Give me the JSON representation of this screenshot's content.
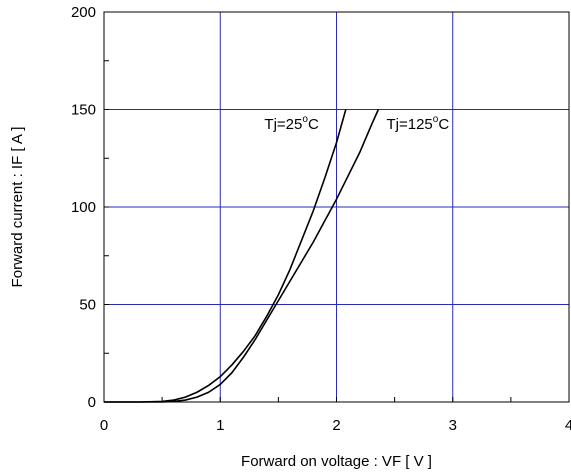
{
  "chart_data": {
    "type": "line",
    "title": "",
    "xlabel": "Forward on voltage : VF [ V ]",
    "ylabel": "Forward current : IF [ A ]",
    "xlim": [
      0,
      4
    ],
    "ylim": [
      0,
      200
    ],
    "x_ticks": [
      0,
      1,
      2,
      3,
      4
    ],
    "y_ticks": [
      0,
      50,
      100,
      150,
      200
    ],
    "x_tick_labels": [
      "0",
      "1",
      "2",
      "3",
      "4"
    ],
    "y_tick_labels": [
      "0",
      "50",
      "100",
      "150",
      "200"
    ],
    "grid": true,
    "legend": "none",
    "colors": {
      "grid": "#2a2ab8",
      "line": "#000000",
      "frame": "#000000"
    },
    "series": [
      {
        "x": [
          0.0,
          0.3,
          0.5,
          0.6,
          0.7,
          0.8,
          0.9,
          1.0,
          1.1,
          1.2,
          1.3,
          1.4,
          1.5,
          1.6,
          1.7,
          1.8,
          1.9,
          2.0,
          2.08
        ],
        "y": [
          0,
          0,
          0.3,
          1,
          2.5,
          5,
          8.5,
          13,
          19,
          26,
          34,
          44,
          55,
          68,
          83,
          98,
          115,
          133,
          150
        ]
      },
      {
        "x": [
          0.0,
          0.3,
          0.5,
          0.6,
          0.7,
          0.8,
          0.9,
          1.0,
          1.1,
          1.2,
          1.3,
          1.4,
          1.5,
          1.6,
          1.7,
          1.8,
          1.9,
          2.0,
          2.1,
          2.2,
          2.3,
          2.36
        ],
        "y": [
          0,
          0,
          0,
          0.3,
          1,
          2.5,
          5,
          9,
          15,
          23,
          32,
          42,
          52,
          62,
          72,
          82,
          93,
          104,
          116,
          128,
          142,
          150
        ]
      }
    ],
    "annotations": [
      {
        "base": "Tj=25",
        "sup": "o",
        "unit": "C",
        "x": 1.38,
        "y": 140
      },
      {
        "base": "Tj=125",
        "sup": "o",
        "unit": "C",
        "x": 2.43,
        "y": 140
      }
    ]
  }
}
